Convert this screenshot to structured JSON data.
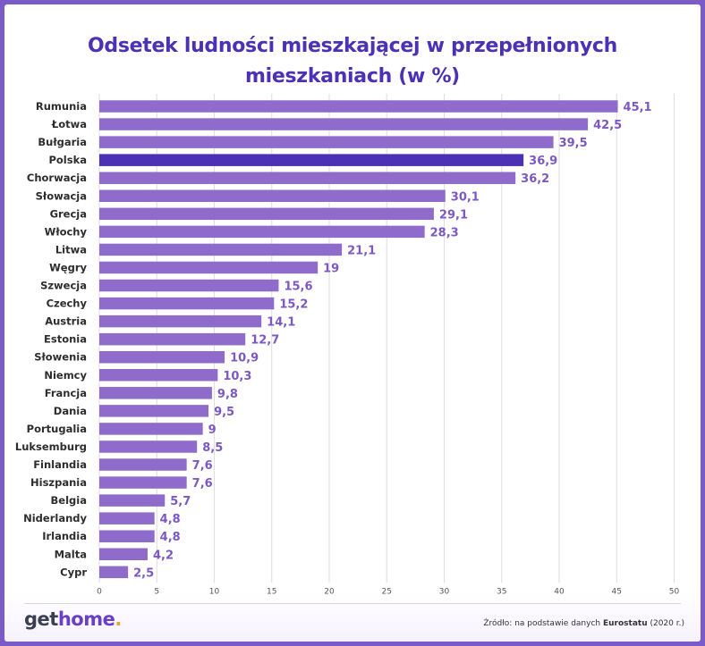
{
  "chart_data": {
    "type": "bar",
    "orientation": "horizontal",
    "title": "Odsetek ludności mieszkającej w przepełnionych mieszkaniach (w %)",
    "title_lines": [
      "Odsetek ludności mieszkającej w przepełnionych",
      "mieszkaniach (w %)"
    ],
    "categories": [
      "Rumunia",
      "Łotwa",
      "Bułgaria",
      "Polska",
      "Chorwacja",
      "Słowacja",
      "Grecja",
      "Włochy",
      "Litwa",
      "Węgry",
      "Szwecja",
      "Czechy",
      "Austria",
      "Estonia",
      "Słowenia",
      "Niemcy",
      "Francja",
      "Dania",
      "Portugalia",
      "Luksemburg",
      "Finlandia",
      "Hiszpania",
      "Belgia",
      "Niderlandy",
      "Irlandia",
      "Malta",
      "Cypr"
    ],
    "values": [
      45.1,
      42.5,
      39.5,
      36.9,
      36.2,
      30.1,
      29.1,
      28.3,
      21.1,
      19,
      15.6,
      15.2,
      14.1,
      12.7,
      10.9,
      10.3,
      9.8,
      9.5,
      9,
      8.5,
      7.6,
      7.6,
      5.7,
      4.8,
      4.8,
      4.2,
      2.5
    ],
    "value_labels": [
      "45,1",
      "42,5",
      "39,5",
      "36,9",
      "36,2",
      "30,1",
      "29,1",
      "28,3",
      "21,1",
      "19",
      "15,6",
      "15,2",
      "14,1",
      "12,7",
      "10,9",
      "10,3",
      "9,8",
      "9,5",
      "9",
      "8,5",
      "7,6",
      "7,6",
      "5,7",
      "4,8",
      "4,8",
      "4,2",
      "2,5"
    ],
    "highlight": "Polska",
    "xlim": [
      0,
      50
    ],
    "xticks": [
      0,
      5,
      10,
      15,
      20,
      25,
      30,
      35,
      40,
      45,
      50
    ],
    "grid": true,
    "colors": {
      "bar": "#8f6ccb",
      "highlight": "#4b31b3",
      "value_label": "#7b58c4",
      "title": "#4b31b3"
    }
  },
  "logo": {
    "get": "get",
    "home": "home",
    "dot": "."
  },
  "source": {
    "prefix": "Źródło: na podstawie danych ",
    "bold": "Eurostatu",
    "suffix": " (2020 r.)"
  }
}
